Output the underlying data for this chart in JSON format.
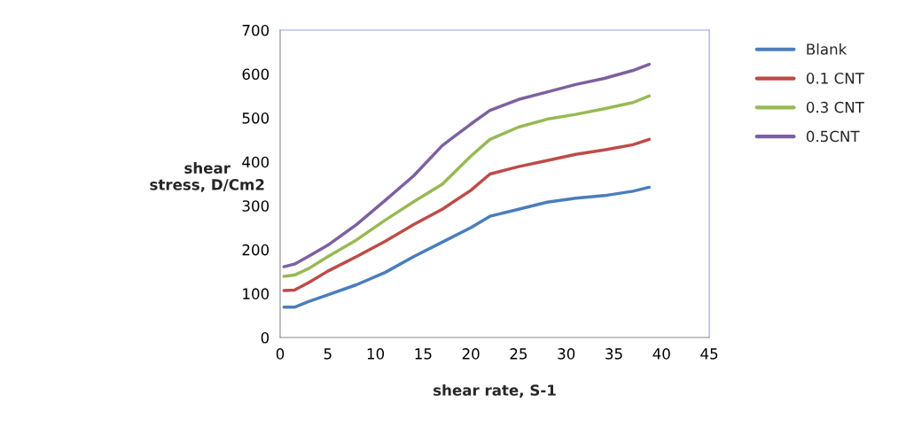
{
  "chart_data": {
    "type": "line",
    "xlabel": "shear rate, S-1",
    "ylabel": "shear\nstress, D/Cm2",
    "x": [
      0.4,
      1.5,
      3,
      5,
      8,
      11,
      14,
      17,
      20,
      22,
      25,
      28,
      31,
      34,
      37,
      38.7
    ],
    "series": [
      {
        "name": "Blank",
        "color": "#4a7ebb",
        "values": [
          69,
          69,
          82,
          97,
          120,
          148,
          184,
          217,
          250,
          276,
          292,
          308,
          317,
          323,
          333,
          342
        ]
      },
      {
        "name": "0.1 CNT",
        "color": "#be4b48",
        "values": [
          107,
          108,
          125,
          151,
          184,
          219,
          257,
          292,
          335,
          372,
          389,
          403,
          417,
          427,
          439,
          451
        ]
      },
      {
        "name": "0.3 CNT",
        "color": "#98b954",
        "values": [
          139,
          142,
          157,
          184,
          222,
          267,
          309,
          349,
          413,
          451,
          479,
          497,
          508,
          521,
          535,
          550
        ]
      },
      {
        "name": "0.5CNT",
        "color": "#7d60a0",
        "values": [
          161,
          167,
          185,
          210,
          257,
          312,
          368,
          437,
          486,
          517,
          542,
          559,
          576,
          590,
          608,
          622
        ]
      }
    ],
    "xlim": [
      0,
      45
    ],
    "xticks": [
      0,
      5,
      10,
      15,
      20,
      25,
      30,
      35,
      40,
      45
    ],
    "ylim": [
      0,
      700
    ],
    "yticks": [
      0,
      100,
      200,
      300,
      400,
      500,
      600,
      700
    ],
    "grid": false,
    "legend": "right",
    "marker": "none",
    "line_style": "solid"
  }
}
